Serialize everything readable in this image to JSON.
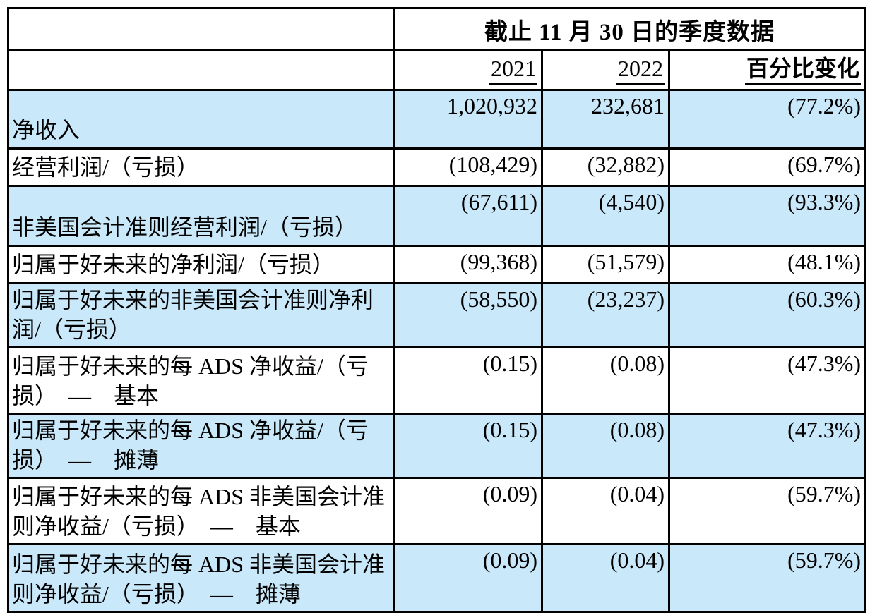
{
  "table": {
    "title": "截止 11 月 30 日的季度数据",
    "columns": [
      "2021",
      "2022",
      "百分比变化"
    ],
    "rows": [
      {
        "label": "净收入",
        "v2021": "1,020,932",
        "v2022": "232,681",
        "pct_change": "(77.2%)"
      },
      {
        "label": "经营利润/（亏损）",
        "v2021": "(108,429)",
        "v2022": "(32,882)",
        "pct_change": "(69.7%)"
      },
      {
        "label": "非美国会计准则经营利润/（亏损）",
        "v2021": "(67,611)",
        "v2022": "(4,540)",
        "pct_change": "(93.3%)"
      },
      {
        "label": "归属于好未来的净利润/（亏损）",
        "v2021": "(99,368)",
        "v2022": "(51,579)",
        "pct_change": "(48.1%)"
      },
      {
        "label": "归属于好未来的非美国会计准则净利润/（亏损）",
        "v2021": "(58,550)",
        "v2022": "(23,237)",
        "pct_change": "(60.3%)"
      },
      {
        "label": "归属于好未来的每 ADS 净收益/（亏损）　—　基本",
        "v2021": "(0.15)",
        "v2022": "(0.08)",
        "pct_change": "(47.3%)"
      },
      {
        "label": "归属于好未来的每 ADS 净收益/（亏损）　—　摊薄",
        "v2021": "(0.15)",
        "v2022": "(0.08)",
        "pct_change": "(47.3%)"
      },
      {
        "label": "归属于好未来的每 ADS 非美国会计准则净收益/（亏损）　—　基本",
        "v2021": "(0.09)",
        "v2022": "(0.04)",
        "pct_change": "(59.7%)"
      },
      {
        "label": "归属于好未来的每 ADS 非美国会计准则净收益/（亏损）　—　摊薄",
        "v2021": "(0.09)",
        "v2022": "(0.04)",
        "pct_change": "(59.7%)"
      }
    ]
  },
  "colors": {
    "row_shade": "#C9E8FA",
    "border": "#000000",
    "text": "#000000",
    "background": "#FFFFFF"
  }
}
